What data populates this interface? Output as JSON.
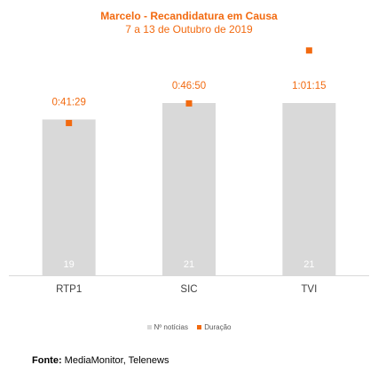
{
  "chart_data": {
    "type": "bar",
    "title": "Marcelo - Recandidatura em Causa",
    "subtitle": "7 a 13 de Outubro de 2019",
    "categories": [
      "RTP1",
      "SIC",
      "TVI"
    ],
    "series": [
      {
        "name": "Nº notícias",
        "type": "bar",
        "values": [
          19,
          21,
          21
        ],
        "color": "#d9d9d9",
        "label_color": "#ffffff"
      },
      {
        "name": "Duração",
        "type": "scatter",
        "values": [
          2489,
          2810,
          3675
        ],
        "labels": [
          "0:41:29",
          "0:46:50",
          "1:01:15"
        ],
        "color": "#f26a10"
      }
    ],
    "ylim_bars": [
      0,
      21
    ],
    "ylim_duration": [
      0,
      4500
    ],
    "legend_position": "bottom",
    "grid": false
  },
  "source": {
    "label": "Fonte:",
    "text": "MediaMonitor, Telenews"
  }
}
